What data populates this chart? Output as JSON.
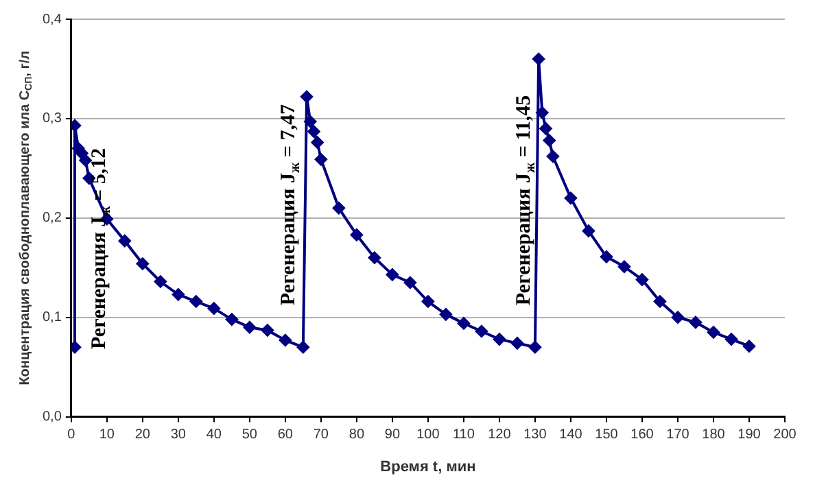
{
  "chart_data": {
    "type": "line",
    "xlabel": "Время t, мин",
    "ylabel": "Концентрация свободноплавающего ила C$_{СП}$, г/л",
    "x": [
      1,
      1,
      2,
      3,
      4,
      5,
      10,
      15,
      20,
      25,
      30,
      35,
      40,
      45,
      50,
      55,
      60,
      65,
      66,
      67,
      68,
      69,
      70,
      75,
      80,
      85,
      90,
      95,
      100,
      105,
      110,
      115,
      120,
      125,
      130,
      131,
      132,
      133,
      134,
      135,
      140,
      145,
      150,
      155,
      160,
      165,
      170,
      175,
      180,
      185,
      190
    ],
    "series": [
      {
        "color": "#000080",
        "values": [
          0.07,
          0.293,
          0.27,
          0.265,
          0.258,
          0.24,
          0.199,
          0.177,
          0.154,
          0.136,
          0.123,
          0.116,
          0.109,
          0.098,
          0.09,
          0.087,
          0.077,
          0.07,
          0.322,
          0.297,
          0.287,
          0.276,
          0.259,
          0.21,
          0.183,
          0.16,
          0.143,
          0.135,
          0.116,
          0.103,
          0.094,
          0.086,
          0.078,
          0.074,
          0.07,
          0.36,
          0.306,
          0.29,
          0.278,
          0.262,
          0.22,
          0.187,
          0.161,
          0.151,
          0.138,
          0.116,
          0.1,
          0.095,
          0.085,
          0.078,
          0.071
        ]
      }
    ],
    "xlim": [
      0,
      200
    ],
    "xticks": [
      0,
      10,
      20,
      30,
      40,
      50,
      60,
      70,
      80,
      90,
      100,
      110,
      120,
      130,
      140,
      150,
      160,
      170,
      180,
      190,
      200
    ],
    "ylim": [
      0,
      0.4
    ],
    "yticks": [
      {
        "value": 0,
        "label": "0,0"
      },
      {
        "value": 0.1,
        "label": "0,1"
      },
      {
        "value": 0.2,
        "label": "0,2"
      },
      {
        "value": 0.3,
        "label": "0,3"
      },
      {
        "value": 0.4,
        "label": "0,4"
      }
    ],
    "grid": "y",
    "marker": "diamond",
    "line_style": "solid",
    "annotations": [
      "Регенерация J$_{ж}$ = 5,12",
      "Регенерация J$_{ж}$ = 7,47",
      "Регенерация J$_{ж}$ = 11,45"
    ]
  }
}
